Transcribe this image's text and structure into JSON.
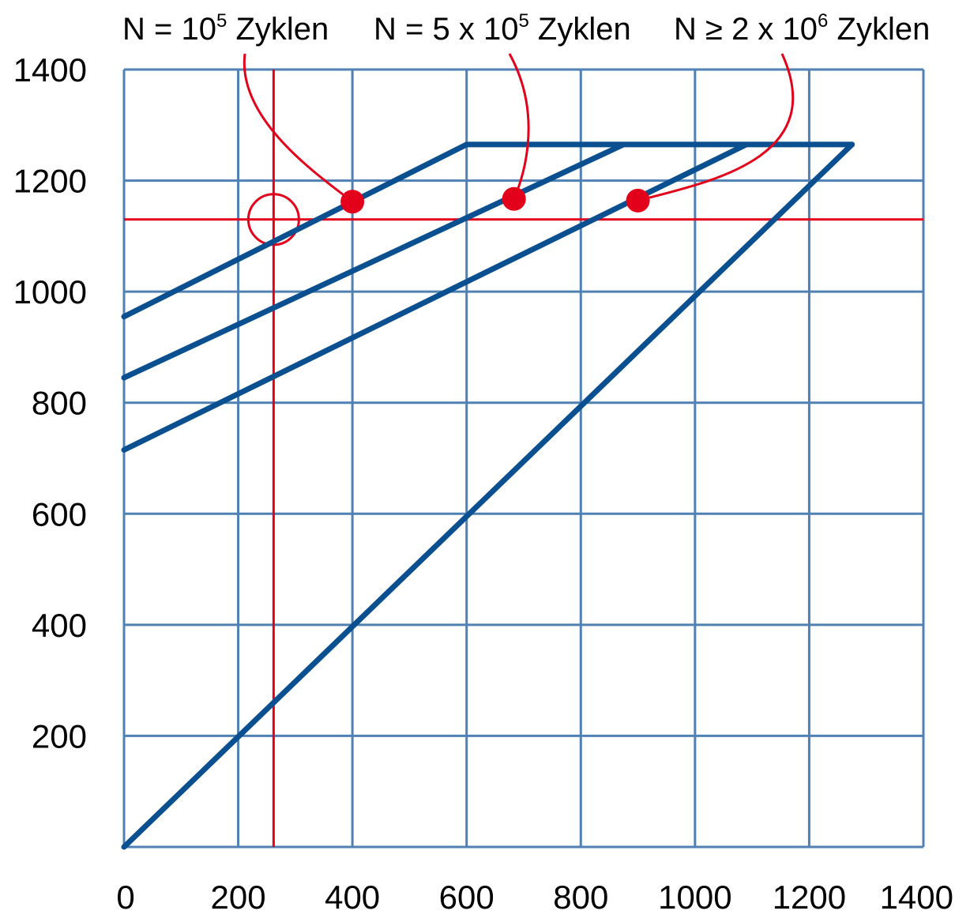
{
  "chart_data": {
    "type": "line",
    "xlim": [
      0,
      1400
    ],
    "ylim": [
      0,
      1400
    ],
    "x_ticks": [
      "0",
      "200",
      "400",
      "600",
      "800",
      "1000",
      "1200",
      "1400"
    ],
    "y_ticks": [
      "200",
      "400",
      "600",
      "800",
      "1000",
      "1200",
      "1400"
    ],
    "grid": true,
    "colors": {
      "grid": "#4f81b4",
      "series": "#0a4f8f",
      "highlight": "#e3001b"
    },
    "series": [
      {
        "points": [
          [
            0,
            955
          ],
          [
            600,
            1265
          ],
          [
            1275,
            1265
          ]
        ]
      },
      {
        "points": [
          [
            0,
            845
          ],
          [
            875,
            1265
          ]
        ]
      },
      {
        "points": [
          [
            0,
            715
          ],
          [
            1090,
            1265
          ]
        ]
      },
      {
        "points": [
          [
            0,
            0
          ],
          [
            1275,
            1265
          ]
        ]
      }
    ],
    "reference_lines": {
      "x": 262,
      "y": 1130
    },
    "highlight_circle": {
      "x": 262,
      "y": 1130
    },
    "annotations": [
      {
        "pre": "N = 10",
        "sup": "5",
        "post": " Zyklen",
        "point": [
          400,
          1162
        ]
      },
      {
        "pre": "N = 5 x 10",
        "sup": "5",
        "post": " Zyklen",
        "point": [
          683,
          1167
        ]
      },
      {
        "pre": "N ≥ 2 x 10",
        "sup": "6",
        "post": " Zyklen",
        "point": [
          900,
          1164
        ]
      }
    ]
  }
}
